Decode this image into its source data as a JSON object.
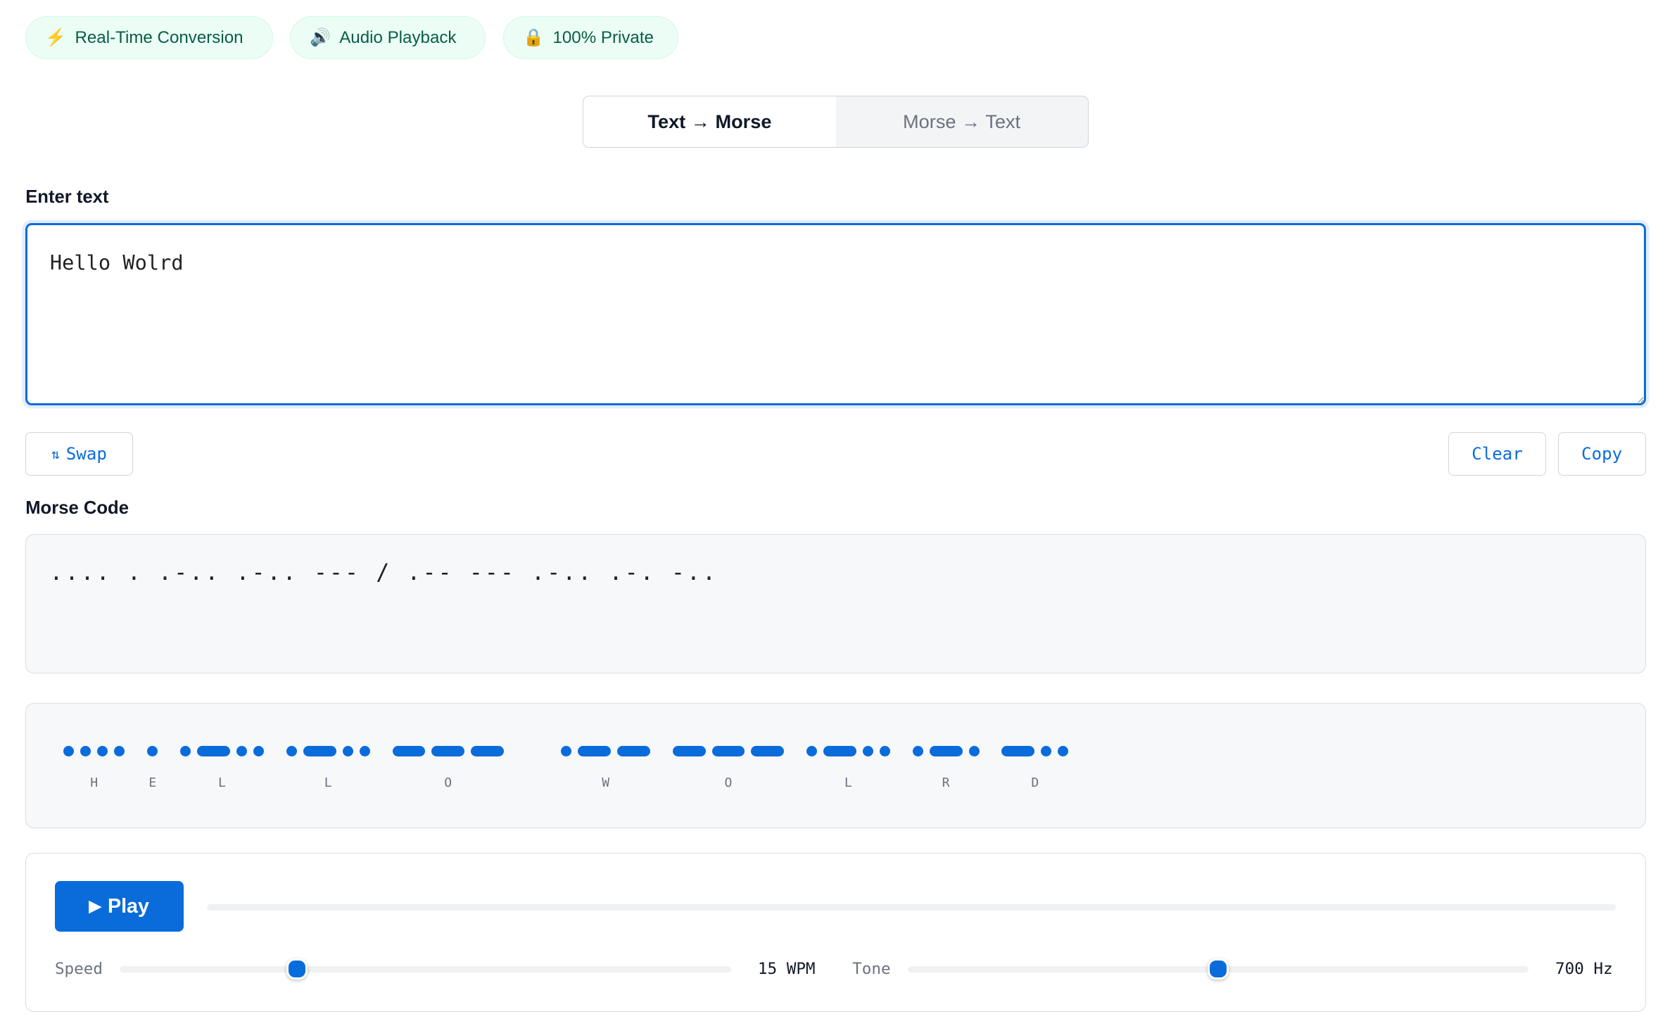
{
  "badges": [
    {
      "icon": "⚡",
      "label": "Real-Time Conversion"
    },
    {
      "icon": "🔊",
      "label": "Audio Playback"
    },
    {
      "icon": "🔒",
      "label": "100% Private"
    }
  ],
  "mode_toggle": {
    "options": [
      "Text → Morse",
      "Morse → Text"
    ],
    "active": 0
  },
  "input": {
    "label": "Enter text",
    "value": "Hello Wolrd"
  },
  "actions": {
    "swap_icon": "⇅",
    "swap": "Swap",
    "clear": "Clear",
    "copy": "Copy"
  },
  "output": {
    "label": "Morse Code",
    "value": ".... . .-.. .-.. --- / .-- --- .-.. .-. -.."
  },
  "visualization": [
    {
      "letter": "H",
      "code": "...."
    },
    {
      "letter": "E",
      "code": "."
    },
    {
      "letter": "L",
      "code": ".-.."
    },
    {
      "letter": "L",
      "code": ".-.."
    },
    {
      "letter": "O",
      "code": "---",
      "word_end": true
    },
    {
      "letter": "W",
      "code": ".--"
    },
    {
      "letter": "O",
      "code": "---"
    },
    {
      "letter": "L",
      "code": ".-.."
    },
    {
      "letter": "R",
      "code": ".-."
    },
    {
      "letter": "D",
      "code": "-.."
    }
  ],
  "player": {
    "play_icon": "▶",
    "play": "Play",
    "progress": 0,
    "speed": {
      "label": "Speed",
      "value": "15 WPM",
      "fraction": 0.29
    },
    "tone": {
      "label": "Tone",
      "value": "700 Hz",
      "fraction": 0.5
    }
  },
  "colors": {
    "accent": "#0a6cdb",
    "badge_bg": "#ecfdf5",
    "badge_text": "#065f46"
  }
}
